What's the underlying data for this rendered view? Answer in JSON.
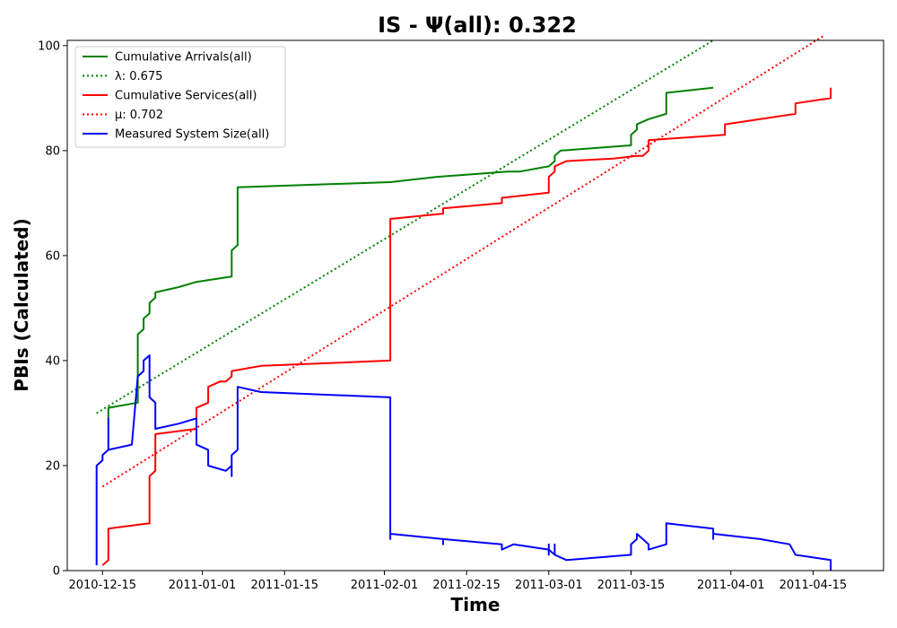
{
  "chart_data": {
    "type": "line",
    "title": "IS -  Ψ(all): 0.322",
    "xlabel": "Time",
    "ylabel": "PBIs (Calculated)",
    "x_type": "date",
    "xlim": [
      "2010-12-09",
      "2011-04-27"
    ],
    "ylim": [
      0,
      101
    ],
    "x_ticks": [
      "2010-12-15",
      "2011-01-01",
      "2011-01-15",
      "2011-02-01",
      "2011-02-15",
      "2011-03-01",
      "2011-03-15",
      "2011-04-01",
      "2011-04-15"
    ],
    "y_ticks": [
      0,
      20,
      40,
      60,
      80,
      100
    ],
    "grid": false,
    "legend_position": "top-left",
    "series": [
      {
        "name": "Cumulative Arrivals(all)",
        "color": "#008000",
        "style": "solid",
        "points": [
          [
            "2010-12-16",
            29
          ],
          [
            "2010-12-16",
            31
          ],
          [
            "2010-12-21",
            32
          ],
          [
            "2010-12-21",
            45
          ],
          [
            "2010-12-22",
            46
          ],
          [
            "2010-12-22",
            48
          ],
          [
            "2010-12-23",
            49
          ],
          [
            "2010-12-23",
            51
          ],
          [
            "2010-12-24",
            52
          ],
          [
            "2010-12-24",
            53
          ],
          [
            "2010-12-28",
            54
          ],
          [
            "2010-12-31",
            55
          ],
          [
            "2011-01-06",
            56
          ],
          [
            "2011-01-06",
            60
          ],
          [
            "2011-01-06",
            61
          ],
          [
            "2011-01-07",
            62
          ],
          [
            "2011-01-07",
            66
          ],
          [
            "2011-01-07",
            73
          ],
          [
            "2011-02-02",
            74
          ],
          [
            "2011-02-10",
            75
          ],
          [
            "2011-02-22",
            76
          ],
          [
            "2011-02-24",
            76
          ],
          [
            "2011-03-01",
            77
          ],
          [
            "2011-03-02",
            78
          ],
          [
            "2011-03-02",
            79
          ],
          [
            "2011-03-03",
            80
          ],
          [
            "2011-03-15",
            81
          ],
          [
            "2011-03-15",
            83
          ],
          [
            "2011-03-16",
            84
          ],
          [
            "2011-03-16",
            85
          ],
          [
            "2011-03-18",
            86
          ],
          [
            "2011-03-21",
            87
          ],
          [
            "2011-03-21",
            91
          ],
          [
            "2011-03-29",
            92
          ]
        ]
      },
      {
        "name": "λ: 0.675",
        "color": "#008000",
        "style": "dotted",
        "points": [
          [
            "2010-12-14",
            30
          ],
          [
            "2011-03-29",
            101
          ]
        ]
      },
      {
        "name": "Cumulative Services(all)",
        "color": "#ff0000",
        "style": "solid",
        "points": [
          [
            "2010-12-15",
            1
          ],
          [
            "2010-12-16",
            2
          ],
          [
            "2010-12-16",
            8
          ],
          [
            "2010-12-23",
            9
          ],
          [
            "2010-12-23",
            18
          ],
          [
            "2010-12-24",
            19
          ],
          [
            "2010-12-24",
            26
          ],
          [
            "2010-12-31",
            27
          ],
          [
            "2010-12-31",
            31
          ],
          [
            "2011-01-02",
            32
          ],
          [
            "2011-01-02",
            35
          ],
          [
            "2011-01-04",
            36
          ],
          [
            "2011-01-05",
            36
          ],
          [
            "2011-01-06",
            37
          ],
          [
            "2011-01-06",
            38
          ],
          [
            "2011-01-11",
            39
          ],
          [
            "2011-02-02",
            40
          ],
          [
            "2011-02-02",
            67
          ],
          [
            "2011-02-11",
            68
          ],
          [
            "2011-02-11",
            69
          ],
          [
            "2011-02-21",
            70
          ],
          [
            "2011-02-21",
            71
          ],
          [
            "2011-03-01",
            72
          ],
          [
            "2011-03-01",
            75
          ],
          [
            "2011-03-02",
            76
          ],
          [
            "2011-03-02",
            77
          ],
          [
            "2011-03-04",
            78
          ],
          [
            "2011-03-12",
            78.5
          ],
          [
            "2011-03-16",
            79
          ],
          [
            "2011-03-17",
            79
          ],
          [
            "2011-03-18",
            80
          ],
          [
            "2011-03-18",
            82
          ],
          [
            "2011-03-31",
            83
          ],
          [
            "2011-03-31",
            85
          ],
          [
            "2011-04-06",
            86
          ],
          [
            "2011-04-12",
            87
          ],
          [
            "2011-04-12",
            89
          ],
          [
            "2011-04-18",
            90
          ],
          [
            "2011-04-18",
            92
          ]
        ]
      },
      {
        "name": "μ: 0.702",
        "color": "#ff0000",
        "style": "dotted",
        "points": [
          [
            "2010-12-15",
            16
          ],
          [
            "2011-04-17",
            102
          ]
        ]
      },
      {
        "name": "Measured System Size(all)",
        "color": "#0000ff",
        "style": "solid",
        "points": [
          [
            "2010-12-14",
            1
          ],
          [
            "2010-12-14",
            8
          ],
          [
            "2010-12-14",
            9
          ],
          [
            "2010-12-14",
            12
          ],
          [
            "2010-12-14",
            20
          ],
          [
            "2010-12-15",
            21
          ],
          [
            "2010-12-15",
            22
          ],
          [
            "2010-12-16",
            23
          ],
          [
            "2010-12-16",
            29
          ],
          [
            "2010-12-16",
            23
          ],
          [
            "2010-12-20",
            24
          ],
          [
            "2010-12-21",
            37
          ],
          [
            "2010-12-22",
            38
          ],
          [
            "2010-12-22",
            40
          ],
          [
            "2010-12-23",
            41
          ],
          [
            "2010-12-23",
            33
          ],
          [
            "2010-12-24",
            32
          ],
          [
            "2010-12-24",
            27
          ],
          [
            "2010-12-28",
            28
          ],
          [
            "2010-12-31",
            29
          ],
          [
            "2010-12-31",
            24
          ],
          [
            "2011-01-02",
            23
          ],
          [
            "2011-01-02",
            20
          ],
          [
            "2011-01-05",
            19
          ],
          [
            "2011-01-06",
            20
          ],
          [
            "2011-01-06",
            18
          ],
          [
            "2011-01-06",
            22
          ],
          [
            "2011-01-07",
            23
          ],
          [
            "2011-01-07",
            28
          ],
          [
            "2011-01-07",
            35
          ],
          [
            "2011-01-11",
            34
          ],
          [
            "2011-02-02",
            33
          ],
          [
            "2011-02-02",
            6
          ],
          [
            "2011-02-02",
            7
          ],
          [
            "2011-02-11",
            6
          ],
          [
            "2011-02-11",
            5
          ],
          [
            "2011-02-11",
            6
          ],
          [
            "2011-02-21",
            5
          ],
          [
            "2011-02-21",
            4
          ],
          [
            "2011-02-23",
            5
          ],
          [
            "2011-03-01",
            4
          ],
          [
            "2011-03-01",
            5
          ],
          [
            "2011-03-01",
            3
          ],
          [
            "2011-03-01",
            4
          ],
          [
            "2011-03-02",
            3
          ],
          [
            "2011-03-02",
            5
          ],
          [
            "2011-03-02",
            3
          ],
          [
            "2011-03-04",
            2
          ],
          [
            "2011-03-15",
            3
          ],
          [
            "2011-03-15",
            5
          ],
          [
            "2011-03-16",
            6
          ],
          [
            "2011-03-16",
            7
          ],
          [
            "2011-03-17",
            6
          ],
          [
            "2011-03-18",
            5
          ],
          [
            "2011-03-18",
            4
          ],
          [
            "2011-03-21",
            5
          ],
          [
            "2011-03-21",
            9
          ],
          [
            "2011-03-29",
            8
          ],
          [
            "2011-03-29",
            6
          ],
          [
            "2011-03-29",
            7
          ],
          [
            "2011-04-06",
            6
          ],
          [
            "2011-04-11",
            5
          ],
          [
            "2011-04-12",
            3
          ],
          [
            "2011-04-18",
            2
          ],
          [
            "2011-04-18",
            0
          ]
        ]
      }
    ]
  }
}
